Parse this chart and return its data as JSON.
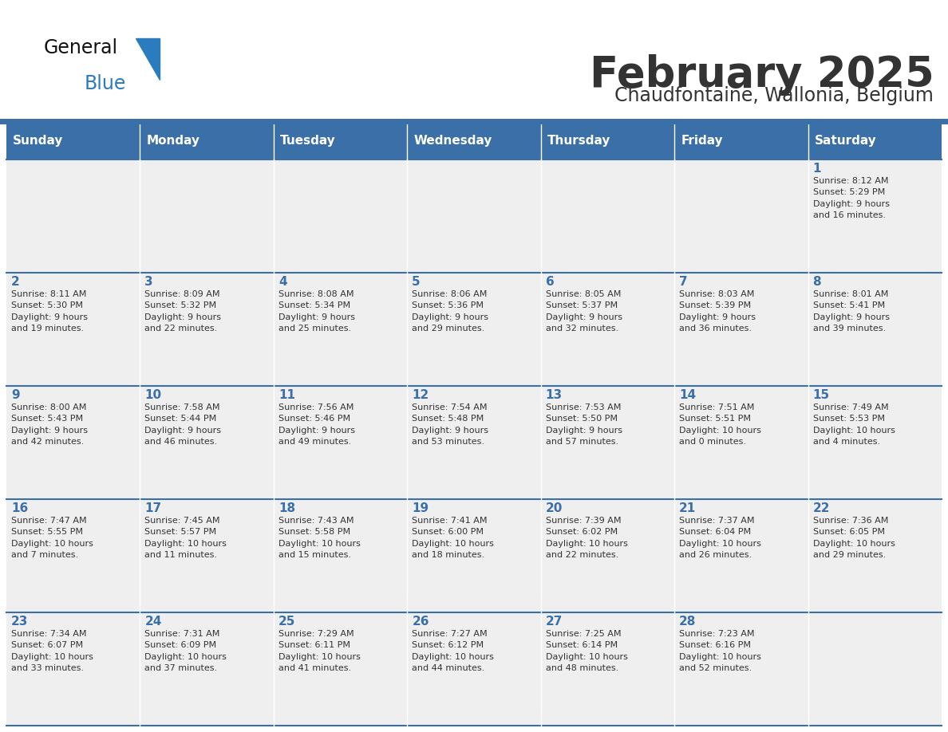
{
  "title": "February 2025",
  "subtitle": "Chaudfontaine, Wallonia, Belgium",
  "header_bg_color": "#3a6fa8",
  "header_text_color": "#ffffff",
  "cell_bg_color_light": "#efefef",
  "day_number_color": "#3a6fa8",
  "text_color": "#333333",
  "line_color": "#3a6fa8",
  "days_of_week": [
    "Sunday",
    "Monday",
    "Tuesday",
    "Wednesday",
    "Thursday",
    "Friday",
    "Saturday"
  ],
  "weeks": [
    [
      {
        "day": null,
        "info": null
      },
      {
        "day": null,
        "info": null
      },
      {
        "day": null,
        "info": null
      },
      {
        "day": null,
        "info": null
      },
      {
        "day": null,
        "info": null
      },
      {
        "day": null,
        "info": null
      },
      {
        "day": 1,
        "info": "Sunrise: 8:12 AM\nSunset: 5:29 PM\nDaylight: 9 hours\nand 16 minutes."
      }
    ],
    [
      {
        "day": 2,
        "info": "Sunrise: 8:11 AM\nSunset: 5:30 PM\nDaylight: 9 hours\nand 19 minutes."
      },
      {
        "day": 3,
        "info": "Sunrise: 8:09 AM\nSunset: 5:32 PM\nDaylight: 9 hours\nand 22 minutes."
      },
      {
        "day": 4,
        "info": "Sunrise: 8:08 AM\nSunset: 5:34 PM\nDaylight: 9 hours\nand 25 minutes."
      },
      {
        "day": 5,
        "info": "Sunrise: 8:06 AM\nSunset: 5:36 PM\nDaylight: 9 hours\nand 29 minutes."
      },
      {
        "day": 6,
        "info": "Sunrise: 8:05 AM\nSunset: 5:37 PM\nDaylight: 9 hours\nand 32 minutes."
      },
      {
        "day": 7,
        "info": "Sunrise: 8:03 AM\nSunset: 5:39 PM\nDaylight: 9 hours\nand 36 minutes."
      },
      {
        "day": 8,
        "info": "Sunrise: 8:01 AM\nSunset: 5:41 PM\nDaylight: 9 hours\nand 39 minutes."
      }
    ],
    [
      {
        "day": 9,
        "info": "Sunrise: 8:00 AM\nSunset: 5:43 PM\nDaylight: 9 hours\nand 42 minutes."
      },
      {
        "day": 10,
        "info": "Sunrise: 7:58 AM\nSunset: 5:44 PM\nDaylight: 9 hours\nand 46 minutes."
      },
      {
        "day": 11,
        "info": "Sunrise: 7:56 AM\nSunset: 5:46 PM\nDaylight: 9 hours\nand 49 minutes."
      },
      {
        "day": 12,
        "info": "Sunrise: 7:54 AM\nSunset: 5:48 PM\nDaylight: 9 hours\nand 53 minutes."
      },
      {
        "day": 13,
        "info": "Sunrise: 7:53 AM\nSunset: 5:50 PM\nDaylight: 9 hours\nand 57 minutes."
      },
      {
        "day": 14,
        "info": "Sunrise: 7:51 AM\nSunset: 5:51 PM\nDaylight: 10 hours\nand 0 minutes."
      },
      {
        "day": 15,
        "info": "Sunrise: 7:49 AM\nSunset: 5:53 PM\nDaylight: 10 hours\nand 4 minutes."
      }
    ],
    [
      {
        "day": 16,
        "info": "Sunrise: 7:47 AM\nSunset: 5:55 PM\nDaylight: 10 hours\nand 7 minutes."
      },
      {
        "day": 17,
        "info": "Sunrise: 7:45 AM\nSunset: 5:57 PM\nDaylight: 10 hours\nand 11 minutes."
      },
      {
        "day": 18,
        "info": "Sunrise: 7:43 AM\nSunset: 5:58 PM\nDaylight: 10 hours\nand 15 minutes."
      },
      {
        "day": 19,
        "info": "Sunrise: 7:41 AM\nSunset: 6:00 PM\nDaylight: 10 hours\nand 18 minutes."
      },
      {
        "day": 20,
        "info": "Sunrise: 7:39 AM\nSunset: 6:02 PM\nDaylight: 10 hours\nand 22 minutes."
      },
      {
        "day": 21,
        "info": "Sunrise: 7:37 AM\nSunset: 6:04 PM\nDaylight: 10 hours\nand 26 minutes."
      },
      {
        "day": 22,
        "info": "Sunrise: 7:36 AM\nSunset: 6:05 PM\nDaylight: 10 hours\nand 29 minutes."
      }
    ],
    [
      {
        "day": 23,
        "info": "Sunrise: 7:34 AM\nSunset: 6:07 PM\nDaylight: 10 hours\nand 33 minutes."
      },
      {
        "day": 24,
        "info": "Sunrise: 7:31 AM\nSunset: 6:09 PM\nDaylight: 10 hours\nand 37 minutes."
      },
      {
        "day": 25,
        "info": "Sunrise: 7:29 AM\nSunset: 6:11 PM\nDaylight: 10 hours\nand 41 minutes."
      },
      {
        "day": 26,
        "info": "Sunrise: 7:27 AM\nSunset: 6:12 PM\nDaylight: 10 hours\nand 44 minutes."
      },
      {
        "day": 27,
        "info": "Sunrise: 7:25 AM\nSunset: 6:14 PM\nDaylight: 10 hours\nand 48 minutes."
      },
      {
        "day": 28,
        "info": "Sunrise: 7:23 AM\nSunset: 6:16 PM\nDaylight: 10 hours\nand 52 minutes."
      },
      {
        "day": null,
        "info": null
      }
    ]
  ],
  "logo_color_general": "#111111",
  "logo_color_blue": "#2b7bbf",
  "logo_triangle_color": "#2b7bbf"
}
